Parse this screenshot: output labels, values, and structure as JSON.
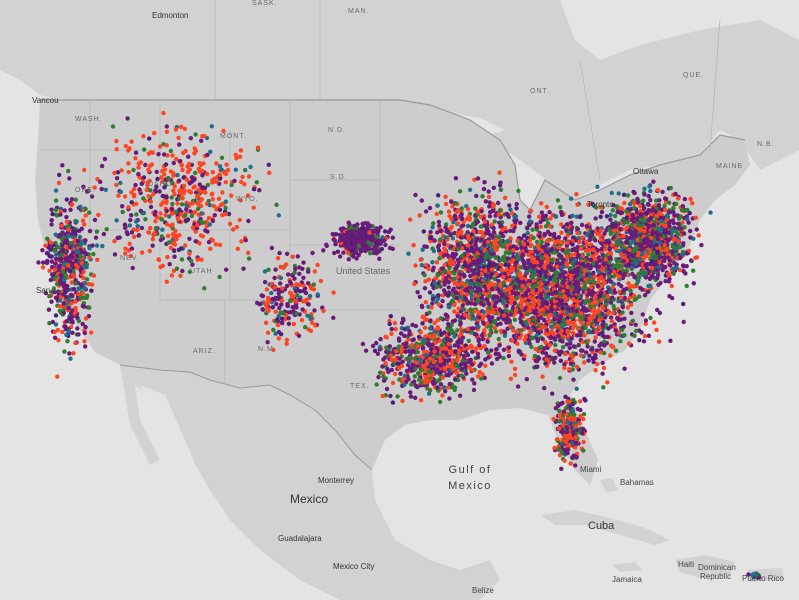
{
  "map": {
    "labels": {
      "edmonton": "Edmonton",
      "sask": "SASK.",
      "man": "MAN.",
      "ont": "ONT.",
      "que": "QUE.",
      "nb": "N.B.",
      "maine": "MAINE",
      "ottawa": "Ottawa",
      "toronto": "Toronto",
      "vancouver": "Vancou",
      "wash": "WASH.",
      "ore": "ORE.",
      "idaho": "IDAHO",
      "mont": "MONT.",
      "nd": "N.D.",
      "sd": "S.D.",
      "wyo": "WYO.",
      "nev": "NEV.",
      "utah": "UTAH",
      "ariz": "ARIZ.",
      "nm": "N.M.",
      "tex": "TEX.",
      "san": "San",
      "united_states": "United States",
      "gulf": "Gulf of",
      "mexico_sea": "Mexico",
      "mexico": "Mexico",
      "monterrey": "Monterrey",
      "guadalajara": "Guadalajara",
      "mexico_city": "Mexico City",
      "bahamas": "Bahamas",
      "cuba": "Cuba",
      "haiti": "Haiti",
      "dominican": "Dominican",
      "republic": "Republic",
      "jamaica": "Jamaica",
      "belize": "Belize",
      "puerto_rico": "Puerto Rico",
      "miami": "Miami"
    },
    "colors": {
      "water": "#e3e3e3",
      "land": "#cfcfcf",
      "border": "#9a9a9a",
      "dot_series": [
        "#ff4422",
        "#6a1b7a",
        "#2e7d32",
        "#1f6f8b",
        "#4a1f7a"
      ]
    },
    "legend": []
  }
}
